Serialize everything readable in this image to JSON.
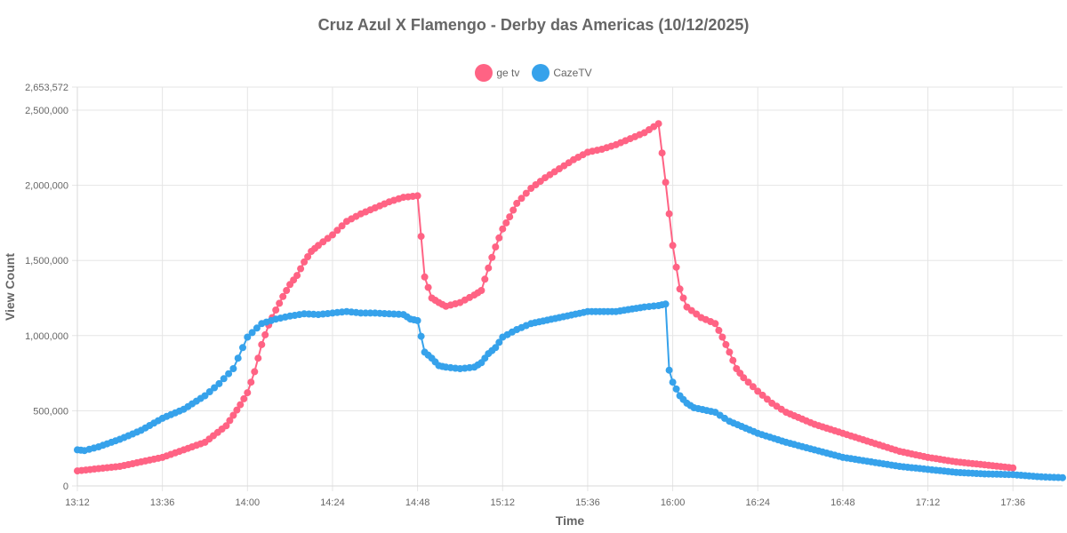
{
  "chart_data": {
    "type": "line",
    "title": "Cruz Azul X Flamengo - Derby das Americas (10/12/2025)",
    "xlabel": "Time",
    "ylabel": "View Count",
    "x_ticks": [
      "13:12",
      "13:36",
      "14:00",
      "14:24",
      "14:48",
      "15:12",
      "15:36",
      "16:00",
      "16:24",
      "16:48",
      "17:12",
      "17:36"
    ],
    "y_ticks": [
      "0",
      "500,000",
      "1,000,000",
      "1,500,000",
      "2,000,000",
      "2,500,000",
      "2,653,572"
    ],
    "ylim": [
      0,
      2653572
    ],
    "x_range": [
      "13:12",
      "17:50"
    ],
    "grid": true,
    "legend_position": "top",
    "series": [
      {
        "name": "ge tv",
        "color": "#ff6384",
        "points": [
          [
            "13:12",
            100000
          ],
          [
            "13:24",
            130000
          ],
          [
            "13:36",
            190000
          ],
          [
            "13:48",
            290000
          ],
          [
            "13:54",
            400000
          ],
          [
            "13:56",
            470000
          ],
          [
            "13:58",
            540000
          ],
          [
            "14:00",
            620000
          ],
          [
            "14:02",
            760000
          ],
          [
            "14:04",
            940000
          ],
          [
            "14:06",
            1070000
          ],
          [
            "14:08",
            1170000
          ],
          [
            "14:10",
            1260000
          ],
          [
            "14:12",
            1340000
          ],
          [
            "14:14",
            1400000
          ],
          [
            "14:16",
            1490000
          ],
          [
            "14:18",
            1560000
          ],
          [
            "14:20",
            1600000
          ],
          [
            "14:24",
            1670000
          ],
          [
            "14:28",
            1760000
          ],
          [
            "14:32",
            1810000
          ],
          [
            "14:36",
            1850000
          ],
          [
            "14:40",
            1890000
          ],
          [
            "14:44",
            1920000
          ],
          [
            "14:48",
            1930000
          ],
          [
            "14:50",
            1390000
          ],
          [
            "14:52",
            1250000
          ],
          [
            "14:54",
            1220000
          ],
          [
            "14:56",
            1195000
          ],
          [
            "15:00",
            1220000
          ],
          [
            "15:04",
            1270000
          ],
          [
            "15:06",
            1300000
          ],
          [
            "15:08",
            1450000
          ],
          [
            "15:10",
            1590000
          ],
          [
            "15:12",
            1710000
          ],
          [
            "15:14",
            1790000
          ],
          [
            "15:16",
            1880000
          ],
          [
            "15:20",
            1980000
          ],
          [
            "15:24",
            2050000
          ],
          [
            "15:28",
            2110000
          ],
          [
            "15:32",
            2170000
          ],
          [
            "15:36",
            2220000
          ],
          [
            "15:40",
            2240000
          ],
          [
            "15:44",
            2270000
          ],
          [
            "15:48",
            2310000
          ],
          [
            "15:52",
            2350000
          ],
          [
            "15:56",
            2410000
          ],
          [
            "15:58",
            2020000
          ],
          [
            "16:00",
            1600000
          ],
          [
            "16:02",
            1310000
          ],
          [
            "16:04",
            1190000
          ],
          [
            "16:08",
            1120000
          ],
          [
            "16:12",
            1080000
          ],
          [
            "16:14",
            990000
          ],
          [
            "16:16",
            890000
          ],
          [
            "16:18",
            780000
          ],
          [
            "16:20",
            720000
          ],
          [
            "16:24",
            630000
          ],
          [
            "16:28",
            550000
          ],
          [
            "16:32",
            490000
          ],
          [
            "16:40",
            410000
          ],
          [
            "16:48",
            350000
          ],
          [
            "16:56",
            290000
          ],
          [
            "17:04",
            230000
          ],
          [
            "17:12",
            190000
          ],
          [
            "17:20",
            160000
          ],
          [
            "17:28",
            140000
          ],
          [
            "17:36",
            120000
          ]
        ]
      },
      {
        "name": "CazeTV",
        "color": "#36a2eb",
        "points": [
          [
            "13:12",
            240000
          ],
          [
            "13:14",
            235000
          ],
          [
            "13:18",
            260000
          ],
          [
            "13:24",
            310000
          ],
          [
            "13:30",
            370000
          ],
          [
            "13:36",
            450000
          ],
          [
            "13:42",
            510000
          ],
          [
            "13:48",
            600000
          ],
          [
            "13:52",
            680000
          ],
          [
            "13:56",
            780000
          ],
          [
            "14:00",
            990000
          ],
          [
            "14:04",
            1080000
          ],
          [
            "14:08",
            1110000
          ],
          [
            "14:12",
            1130000
          ],
          [
            "14:16",
            1145000
          ],
          [
            "14:20",
            1140000
          ],
          [
            "14:24",
            1150000
          ],
          [
            "14:28",
            1160000
          ],
          [
            "14:32",
            1150000
          ],
          [
            "14:36",
            1150000
          ],
          [
            "14:40",
            1145000
          ],
          [
            "14:44",
            1140000
          ],
          [
            "14:46",
            1110000
          ],
          [
            "14:48",
            1100000
          ],
          [
            "14:50",
            890000
          ],
          [
            "14:52",
            850000
          ],
          [
            "14:54",
            800000
          ],
          [
            "14:56",
            790000
          ],
          [
            "15:00",
            780000
          ],
          [
            "15:04",
            790000
          ],
          [
            "15:06",
            820000
          ],
          [
            "15:08",
            880000
          ],
          [
            "15:10",
            920000
          ],
          [
            "15:12",
            990000
          ],
          [
            "15:16",
            1040000
          ],
          [
            "15:20",
            1080000
          ],
          [
            "15:28",
            1120000
          ],
          [
            "15:36",
            1160000
          ],
          [
            "15:44",
            1160000
          ],
          [
            "15:52",
            1190000
          ],
          [
            "15:56",
            1200000
          ],
          [
            "15:58",
            1210000
          ],
          [
            "15:59",
            770000
          ],
          [
            "16:00",
            690000
          ],
          [
            "16:02",
            600000
          ],
          [
            "16:04",
            550000
          ],
          [
            "16:06",
            520000
          ],
          [
            "16:12",
            490000
          ],
          [
            "16:16",
            430000
          ],
          [
            "16:24",
            350000
          ],
          [
            "16:32",
            290000
          ],
          [
            "16:40",
            240000
          ],
          [
            "16:48",
            190000
          ],
          [
            "16:56",
            160000
          ],
          [
            "17:04",
            130000
          ],
          [
            "17:12",
            110000
          ],
          [
            "17:20",
            90000
          ],
          [
            "17:28",
            80000
          ],
          [
            "17:36",
            75000
          ],
          [
            "17:44",
            60000
          ],
          [
            "17:50",
            55000
          ]
        ]
      }
    ]
  }
}
